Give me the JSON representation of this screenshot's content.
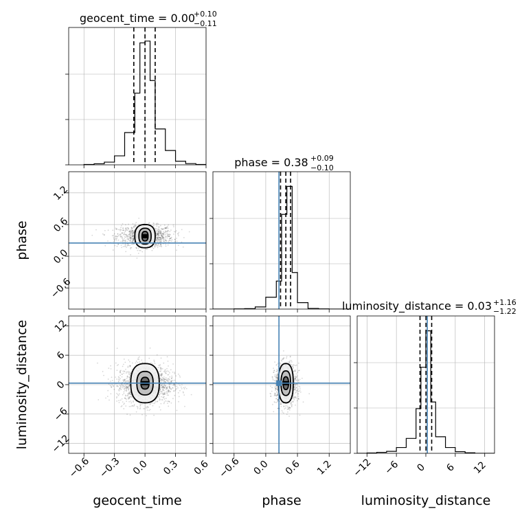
{
  "chart_data": {
    "type": "corner",
    "parameters": [
      "geocent_time",
      "phase",
      "luminosity_distance"
    ],
    "titles": [
      {
        "param": "geocent_time",
        "prefix": "geocent_time = ",
        "median": "0.00",
        "plus": "+0.10",
        "minus": "−0.11"
      },
      {
        "param": "phase",
        "prefix": "phase = ",
        "median": "0.38",
        "plus": "+0.09",
        "minus": "−0.10"
      },
      {
        "param": "luminosity_distance",
        "prefix": "luminosity_distance = ",
        "median": "0.03",
        "plus": "+1.16",
        "minus": "−1.22"
      }
    ],
    "axes": {
      "geocent_time": {
        "range": [
          -0.75,
          0.6
        ],
        "ticks": [
          -0.6,
          -0.3,
          0.0,
          0.3,
          0.6
        ],
        "tick_labels": [
          "−0.6",
          "−0.3",
          "0.0",
          "0.3",
          "0.6"
        ]
      },
      "phase": {
        "range": [
          -1.0,
          1.6
        ],
        "ticks": [
          -0.6,
          0.0,
          0.6,
          1.2
        ],
        "tick_labels": [
          "−0.6",
          "0.0",
          "0.6",
          "1.2"
        ]
      },
      "luminosity_distance": {
        "range": [
          -14.0,
          14.0
        ],
        "ticks": [
          -12,
          -6,
          0,
          6,
          12
        ],
        "tick_labels": [
          "−12",
          "−6",
          "0",
          "6",
          "12"
        ]
      }
    },
    "injection": {
      "geocent_time": null,
      "phase": 0.25,
      "luminosity_distance": 0.3
    },
    "quantiles": {
      "geocent_time": [
        -0.11,
        0.0,
        0.1
      ],
      "phase": [
        0.28,
        0.38,
        0.47
      ],
      "luminosity_distance": [
        -1.19,
        0.03,
        1.19
      ]
    },
    "histograms": {
      "geocent_time": {
        "edges": [
          -0.6,
          -0.5,
          -0.4,
          -0.3,
          -0.2,
          -0.1,
          -0.05,
          0.0,
          0.05,
          0.1,
          0.2,
          0.3,
          0.4,
          0.5,
          0.6
        ],
        "counts": [
          0.2,
          0.6,
          1.5,
          5,
          18,
          40,
          68,
          69,
          47,
          20,
          8,
          2,
          0.7,
          0.2
        ],
        "ymax": 72
      },
      "phase": {
        "edges": [
          -1.0,
          -0.8,
          -0.6,
          -0.4,
          -0.2,
          0.0,
          0.2,
          0.3,
          0.4,
          0.5,
          0.6,
          0.8,
          1.0,
          1.2,
          1.4,
          1.6
        ],
        "counts": [
          0,
          0,
          0.1,
          0.2,
          1.0,
          5.5,
          13,
          44,
          57,
          17,
          3,
          0.3,
          0.1,
          0,
          0
        ],
        "ymax": 60
      },
      "luminosity_distance": {
        "edges": [
          -14,
          -12,
          -10,
          -8,
          -6,
          -4,
          -2,
          -1,
          0,
          1,
          2,
          4,
          6,
          8,
          10,
          12,
          14
        ],
        "counts": [
          0,
          0.2,
          0.6,
          1.2,
          3.5,
          9,
          27,
          52,
          74,
          31,
          10,
          3.5,
          1,
          0.3,
          0,
          0
        ],
        "ymax": 78
      }
    },
    "contours": {
      "phase_vs_geocent_time": {
        "center": [
          0.0,
          0.38
        ],
        "levels": [
          [
            0.1,
            0.22
          ],
          [
            0.06,
            0.15
          ],
          [
            0.03,
            0.09
          ]
        ]
      },
      "luminosity_distance_vs_geocent_time": {
        "center": [
          0.0,
          0.3
        ],
        "levels": [
          [
            0.14,
            4.0
          ],
          [
            0.08,
            2.4
          ],
          [
            0.04,
            1.2
          ]
        ]
      },
      "luminosity_distance_vs_phase": {
        "center": [
          0.38,
          0.3
        ],
        "levels": [
          [
            0.14,
            4.0
          ],
          [
            0.09,
            2.5
          ],
          [
            0.05,
            1.3
          ]
        ]
      }
    },
    "scatter_spread": {
      "geocent_time": 0.12,
      "phase": 0.09,
      "luminosity_distance": 1.8
    }
  },
  "colors": {
    "line": "#000000",
    "injection": "#4682b4",
    "grid": "#b0b0b0",
    "scatter": "#000000"
  }
}
